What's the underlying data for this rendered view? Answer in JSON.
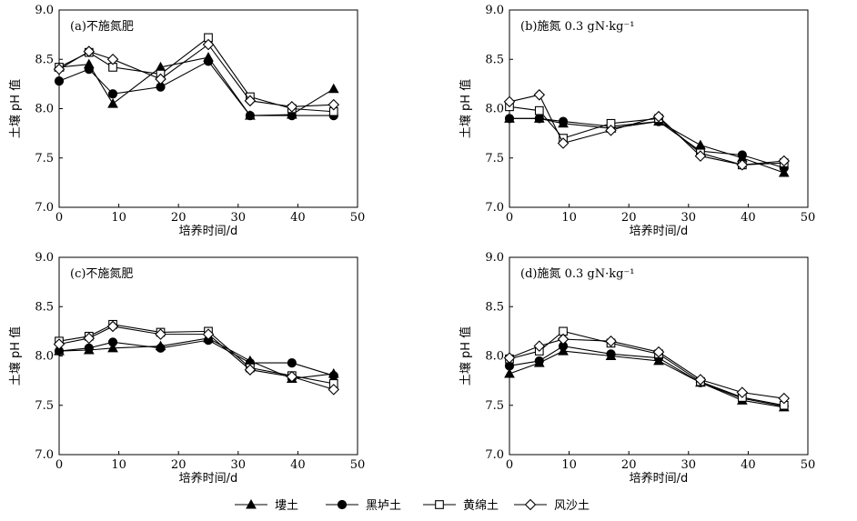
{
  "chart_data": [
    {
      "type": "line",
      "title": "(a)不施氮肥",
      "xlabel": "培养时间/d",
      "ylabel": "土壤 pH 值",
      "xlim": [
        0,
        50
      ],
      "ylim": [
        7.0,
        9.0
      ],
      "xticks": [
        0,
        10,
        20,
        30,
        40,
        50
      ],
      "yticks": [
        7.0,
        7.5,
        8.0,
        8.5,
        9.0
      ],
      "x": [
        0,
        5,
        9,
        17,
        25,
        32,
        39,
        46
      ],
      "series": [
        {
          "name": "塿土",
          "marker": "triangle",
          "values": [
            8.42,
            8.45,
            8.05,
            8.42,
            8.52,
            7.93,
            7.94,
            8.2
          ]
        },
        {
          "name": "黑垆土",
          "marker": "circle",
          "values": [
            8.28,
            8.4,
            8.15,
            8.22,
            8.48,
            7.93,
            7.93,
            7.93
          ]
        },
        {
          "name": "黄绵土",
          "marker": "square",
          "values": [
            8.42,
            8.57,
            8.42,
            8.35,
            8.72,
            8.12,
            8.0,
            7.97
          ]
        },
        {
          "name": "风沙土",
          "marker": "diamond",
          "values": [
            8.4,
            8.58,
            8.5,
            8.3,
            8.65,
            8.08,
            8.02,
            8.04
          ]
        }
      ]
    },
    {
      "type": "line",
      "title": "(b)施氮 0.3 gN·kg⁻¹",
      "xlabel": "培养时间/d",
      "ylabel": "土壤 pH 值",
      "xlim": [
        0,
        50
      ],
      "ylim": [
        7.0,
        9.0
      ],
      "xticks": [
        0,
        10,
        20,
        30,
        40,
        50
      ],
      "yticks": [
        7.0,
        7.5,
        8.0,
        8.5,
        9.0
      ],
      "x": [
        0,
        5,
        9,
        17,
        25,
        32,
        39,
        46
      ],
      "series": [
        {
          "name": "塿土",
          "marker": "triangle",
          "values": [
            7.9,
            7.9,
            7.85,
            7.8,
            7.87,
            7.63,
            7.5,
            7.35
          ]
        },
        {
          "name": "黑垆土",
          "marker": "circle",
          "values": [
            7.9,
            7.9,
            7.87,
            7.82,
            7.87,
            7.57,
            7.53,
            7.4
          ]
        },
        {
          "name": "黄绵土",
          "marker": "square",
          "values": [
            8.02,
            7.98,
            7.7,
            7.85,
            7.9,
            7.55,
            7.43,
            7.45
          ]
        },
        {
          "name": "风沙土",
          "marker": "diamond",
          "values": [
            8.07,
            8.14,
            7.65,
            7.78,
            7.92,
            7.52,
            7.43,
            7.47
          ]
        }
      ]
    },
    {
      "type": "line",
      "title": "(c)不施氮肥",
      "xlabel": "培养时间/d",
      "ylabel": "土壤 pH 值",
      "xlim": [
        0,
        50
      ],
      "ylim": [
        7.0,
        9.0
      ],
      "xticks": [
        0,
        10,
        20,
        30,
        40,
        50
      ],
      "yticks": [
        7.0,
        7.5,
        8.0,
        8.5,
        9.0
      ],
      "x": [
        0,
        5,
        9,
        17,
        25,
        32,
        39,
        46
      ],
      "series": [
        {
          "name": "塿土",
          "marker": "triangle",
          "values": [
            8.05,
            8.06,
            8.08,
            8.1,
            8.18,
            7.95,
            7.77,
            7.82
          ]
        },
        {
          "name": "黑垆土",
          "marker": "circle",
          "values": [
            8.05,
            8.08,
            8.14,
            8.08,
            8.16,
            7.93,
            7.93,
            7.8
          ]
        },
        {
          "name": "黄绵土",
          "marker": "square",
          "values": [
            8.15,
            8.2,
            8.32,
            8.24,
            8.25,
            7.88,
            7.8,
            7.72
          ]
        },
        {
          "name": "风沙土",
          "marker": "diamond",
          "values": [
            8.12,
            8.18,
            8.3,
            8.22,
            8.22,
            7.86,
            7.79,
            7.66
          ]
        }
      ]
    },
    {
      "type": "line",
      "title": "(d)施氮 0.3 gN·kg⁻¹",
      "xlabel": "培养时间/d",
      "ylabel": "土壤 pH 值",
      "xlim": [
        0,
        50
      ],
      "ylim": [
        7.0,
        9.0
      ],
      "xticks": [
        0,
        10,
        20,
        30,
        40,
        50
      ],
      "yticks": [
        7.0,
        7.5,
        8.0,
        8.5,
        9.0
      ],
      "x": [
        0,
        5,
        9,
        17,
        25,
        32,
        39,
        46
      ],
      "series": [
        {
          "name": "塿土",
          "marker": "triangle",
          "values": [
            7.82,
            7.93,
            8.05,
            8.0,
            7.95,
            7.73,
            7.55,
            7.48
          ]
        },
        {
          "name": "黑垆土",
          "marker": "circle",
          "values": [
            7.9,
            7.95,
            8.1,
            8.02,
            7.98,
            7.73,
            7.57,
            7.49
          ]
        },
        {
          "name": "黄绵土",
          "marker": "square",
          "values": [
            7.97,
            8.05,
            8.25,
            8.13,
            8.02,
            7.74,
            7.58,
            7.5
          ]
        },
        {
          "name": "风沙土",
          "marker": "diamond",
          "values": [
            7.98,
            8.1,
            8.17,
            8.15,
            8.04,
            7.76,
            7.63,
            7.57
          ]
        }
      ]
    }
  ],
  "legend": {
    "placement": "bottom-center",
    "items": [
      {
        "label": "塿土",
        "marker": "triangle"
      },
      {
        "label": "黑垆土",
        "marker": "circle"
      },
      {
        "label": "黄绵土",
        "marker": "square"
      },
      {
        "label": "风沙土",
        "marker": "diamond"
      }
    ]
  }
}
